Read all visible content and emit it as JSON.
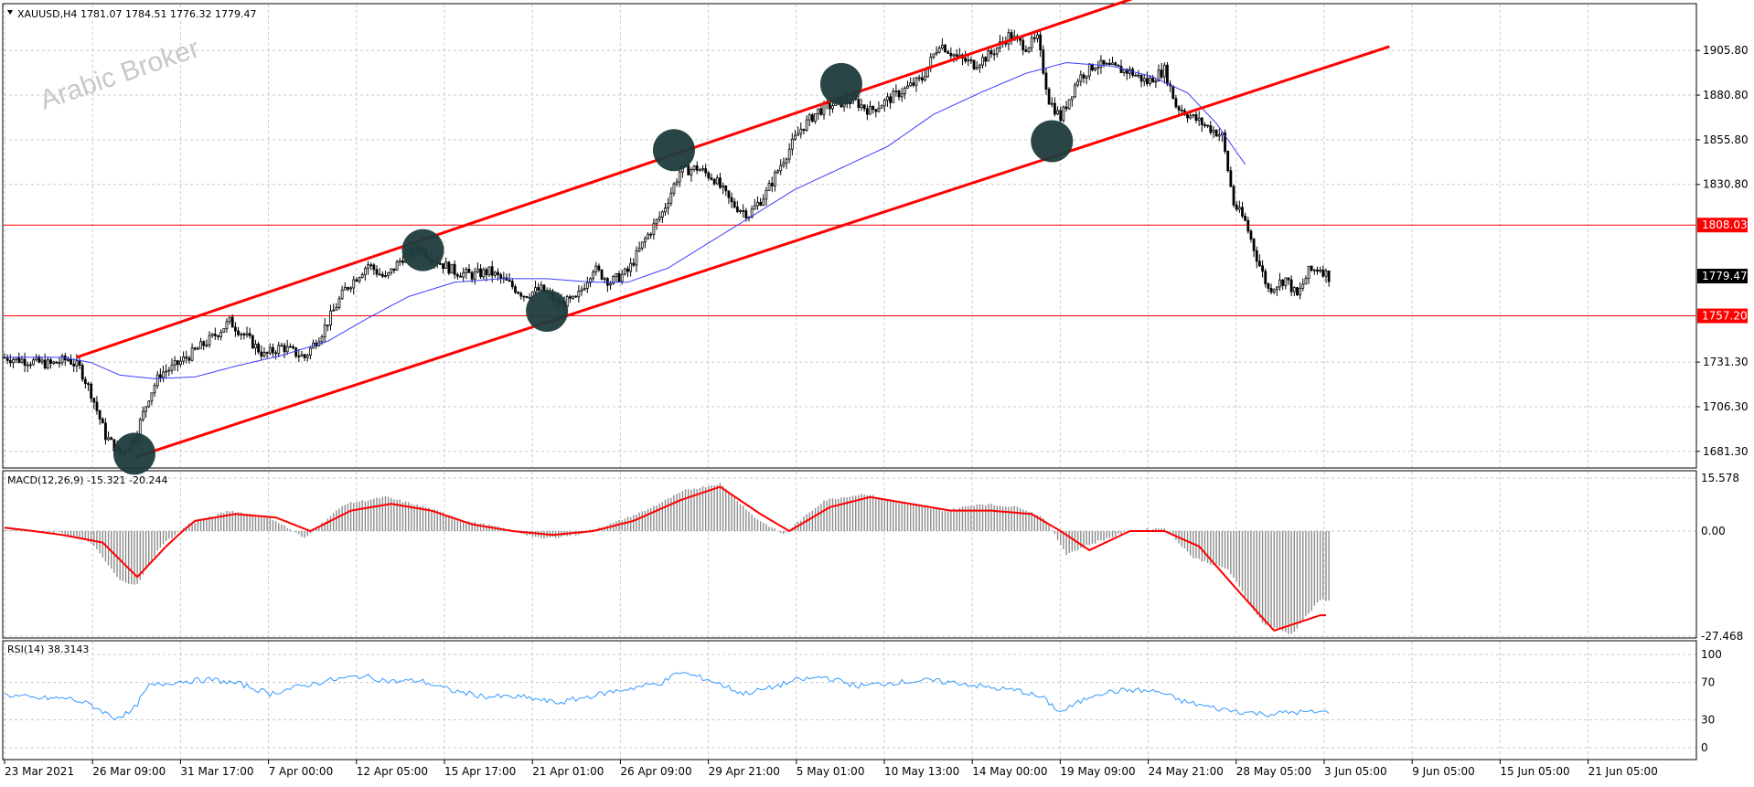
{
  "header": {
    "symbol_label": "XAUUSD,H4",
    "ohlc": "1781.07 1784.51 1776.32 1779.47"
  },
  "watermark": "Arabic Broker",
  "colors": {
    "candle": "#000000",
    "ma": "#3b3bff",
    "channel": "#ff0000",
    "level": "#ff0000",
    "macd_hist": "#8c8c8c",
    "macd_signal": "#ff0000",
    "rsi": "#3399ff",
    "marker": "#1f3b3b"
  },
  "price_axis": {
    "ticks": [
      "1905.80",
      "1880.80",
      "1855.80",
      "1830.80",
      "1731.30",
      "1706.30",
      "1681.30"
    ],
    "levels": [
      {
        "label": "1808.03",
        "value": 1808.03,
        "style": "red"
      },
      {
        "label": "1779.47",
        "value": 1779.47,
        "style": "black"
      },
      {
        "label": "1757.20",
        "value": 1757.2,
        "style": "red"
      }
    ]
  },
  "macd": {
    "label": "MACD(12,26,9) -15.321 -20.244",
    "ticks": [
      "15.578",
      "0.00",
      "-27.468"
    ]
  },
  "rsi": {
    "label": "RSI(14) 38.3143",
    "ticks": [
      "100",
      "70",
      "30",
      "0"
    ]
  },
  "time_axis": {
    "labels": [
      "23 Mar 2021",
      "26 Mar 09:00",
      "31 Mar 17:00",
      "7 Apr 00:00",
      "12 Apr 05:00",
      "15 Apr 17:00",
      "21 Apr 01:00",
      "26 Apr 09:00",
      "29 Apr 21:00",
      "5 May 01:00",
      "10 May 13:00",
      "14 May 00:00",
      "19 May 09:00",
      "24 May 21:00",
      "28 May 05:00",
      "3 Jun 05:00",
      "9 Jun 05:00",
      "15 Jun 05:00",
      "21 Jun 05:00"
    ]
  },
  "chart_data": {
    "type": "candlestick",
    "title": "XAUUSD,H4",
    "price_range": [
      1672,
      1932
    ],
    "price_path": [
      [
        0,
        1734
      ],
      [
        8,
        1732
      ],
      [
        16,
        1730
      ],
      [
        22,
        1733
      ],
      [
        26,
        1728
      ],
      [
        30,
        1714
      ],
      [
        35,
        1690
      ],
      [
        40,
        1680
      ],
      [
        45,
        1688
      ],
      [
        50,
        1712
      ],
      [
        54,
        1725
      ],
      [
        58,
        1728
      ],
      [
        64,
        1735
      ],
      [
        72,
        1745
      ],
      [
        78,
        1754
      ],
      [
        84,
        1745
      ],
      [
        90,
        1735
      ],
      [
        96,
        1740
      ],
      [
        104,
        1734
      ],
      [
        110,
        1748
      ],
      [
        118,
        1772
      ],
      [
        126,
        1786
      ],
      [
        132,
        1778
      ],
      [
        138,
        1790
      ],
      [
        144,
        1795
      ],
      [
        150,
        1788
      ],
      [
        156,
        1782
      ],
      [
        162,
        1780
      ],
      [
        168,
        1782
      ],
      [
        174,
        1776
      ],
      [
        180,
        1769
      ],
      [
        186,
        1772
      ],
      [
        192,
        1764
      ],
      [
        198,
        1766
      ],
      [
        204,
        1784
      ],
      [
        210,
        1776
      ],
      [
        216,
        1782
      ],
      [
        222,
        1800
      ],
      [
        228,
        1815
      ],
      [
        234,
        1838
      ],
      [
        240,
        1840
      ],
      [
        246,
        1834
      ],
      [
        252,
        1820
      ],
      [
        258,
        1814
      ],
      [
        264,
        1826
      ],
      [
        270,
        1845
      ],
      [
        276,
        1862
      ],
      [
        282,
        1872
      ],
      [
        288,
        1876
      ],
      [
        294,
        1878
      ],
      [
        300,
        1872
      ],
      [
        306,
        1878
      ],
      [
        312,
        1884
      ],
      [
        318,
        1890
      ],
      [
        324,
        1910
      ],
      [
        330,
        1902
      ],
      [
        336,
        1898
      ],
      [
        342,
        1904
      ],
      [
        348,
        1914
      ],
      [
        354,
        1908
      ],
      [
        358,
        1912
      ],
      [
        362,
        1878
      ],
      [
        366,
        1868
      ],
      [
        372,
        1890
      ],
      [
        378,
        1898
      ],
      [
        384,
        1896
      ],
      [
        390,
        1894
      ],
      [
        396,
        1888
      ],
      [
        402,
        1895
      ],
      [
        406,
        1875
      ],
      [
        412,
        1868
      ],
      [
        418,
        1862
      ],
      [
        422,
        1858
      ],
      [
        426,
        1820
      ],
      [
        430,
        1810
      ],
      [
        434,
        1790
      ],
      [
        438,
        1772
      ],
      [
        444,
        1778
      ],
      [
        448,
        1768
      ],
      [
        452,
        1782
      ],
      [
        456,
        1784
      ],
      [
        459,
        1779
      ]
    ],
    "ma_path": [
      [
        0,
        1734
      ],
      [
        20,
        1734
      ],
      [
        30,
        1731
      ],
      [
        40,
        1724
      ],
      [
        52,
        1722
      ],
      [
        66,
        1723
      ],
      [
        80,
        1729
      ],
      [
        96,
        1735
      ],
      [
        112,
        1743
      ],
      [
        126,
        1756
      ],
      [
        140,
        1768
      ],
      [
        156,
        1776
      ],
      [
        172,
        1778
      ],
      [
        188,
        1778
      ],
      [
        204,
        1776
      ],
      [
        216,
        1776
      ],
      [
        230,
        1784
      ],
      [
        246,
        1800
      ],
      [
        260,
        1814
      ],
      [
        274,
        1828
      ],
      [
        290,
        1840
      ],
      [
        306,
        1852
      ],
      [
        322,
        1870
      ],
      [
        338,
        1882
      ],
      [
        354,
        1893
      ],
      [
        368,
        1899
      ],
      [
        384,
        1897
      ],
      [
        398,
        1891
      ],
      [
        410,
        1882
      ],
      [
        420,
        1865
      ],
      [
        430,
        1842
      ]
    ],
    "channel": [
      {
        "name": "upper",
        "from": [
          25,
          1734
        ],
        "to": [
          395,
          1937
        ]
      },
      {
        "name": "lower",
        "from": [
          45,
          1678
        ],
        "to": [
          480,
          1908
        ]
      }
    ],
    "touch_points": [
      [
        45,
        1680
      ],
      [
        145,
        1794
      ],
      [
        188,
        1760
      ],
      [
        232,
        1850
      ],
      [
        290,
        1887
      ],
      [
        363,
        1855
      ]
    ],
    "macd_range": [
      -27.468,
      15.578
    ],
    "macd_hist": [
      [
        0,
        0.5
      ],
      [
        20,
        -0.5
      ],
      [
        30,
        -3
      ],
      [
        40,
        -13
      ],
      [
        46,
        -14
      ],
      [
        54,
        -4
      ],
      [
        64,
        2
      ],
      [
        78,
        6
      ],
      [
        92,
        4
      ],
      [
        104,
        -2
      ],
      [
        118,
        8
      ],
      [
        132,
        10
      ],
      [
        146,
        7
      ],
      [
        160,
        3
      ],
      [
        172,
        1
      ],
      [
        186,
        -2
      ],
      [
        198,
        -1
      ],
      [
        210,
        2
      ],
      [
        222,
        6
      ],
      [
        236,
        12
      ],
      [
        248,
        14
      ],
      [
        260,
        4
      ],
      [
        270,
        -1
      ],
      [
        284,
        9
      ],
      [
        298,
        11
      ],
      [
        312,
        8
      ],
      [
        326,
        6
      ],
      [
        338,
        8
      ],
      [
        352,
        7
      ],
      [
        360,
        4
      ],
      [
        368,
        -6
      ],
      [
        378,
        -3
      ],
      [
        390,
        0
      ],
      [
        402,
        1
      ],
      [
        412,
        -7
      ],
      [
        424,
        -10
      ],
      [
        436,
        -24
      ],
      [
        446,
        -27
      ],
      [
        456,
        -18
      ]
    ],
    "macd_signal": [
      [
        0,
        1
      ],
      [
        20,
        -1
      ],
      [
        34,
        -3
      ],
      [
        46,
        -12
      ],
      [
        56,
        -4
      ],
      [
        66,
        3
      ],
      [
        80,
        5
      ],
      [
        94,
        4
      ],
      [
        106,
        0
      ],
      [
        120,
        6
      ],
      [
        134,
        8
      ],
      [
        148,
        6
      ],
      [
        162,
        2
      ],
      [
        176,
        0
      ],
      [
        190,
        -1
      ],
      [
        204,
        0
      ],
      [
        218,
        3
      ],
      [
        234,
        9
      ],
      [
        248,
        13
      ],
      [
        262,
        5
      ],
      [
        272,
        0
      ],
      [
        286,
        7
      ],
      [
        300,
        10
      ],
      [
        314,
        8
      ],
      [
        328,
        6
      ],
      [
        342,
        6
      ],
      [
        356,
        5
      ],
      [
        366,
        0
      ],
      [
        376,
        -5
      ],
      [
        390,
        0
      ],
      [
        402,
        0
      ],
      [
        414,
        -4
      ],
      [
        428,
        -16
      ],
      [
        440,
        -26
      ],
      [
        456,
        -22
      ]
    ],
    "rsi_path": [
      [
        0,
        57
      ],
      [
        10,
        53
      ],
      [
        22,
        53
      ],
      [
        30,
        46
      ],
      [
        38,
        32
      ],
      [
        44,
        38
      ],
      [
        50,
        66
      ],
      [
        60,
        71
      ],
      [
        72,
        73
      ],
      [
        82,
        68
      ],
      [
        92,
        58
      ],
      [
        100,
        64
      ],
      [
        112,
        72
      ],
      [
        124,
        77
      ],
      [
        134,
        71
      ],
      [
        144,
        72
      ],
      [
        154,
        62
      ],
      [
        166,
        55
      ],
      [
        180,
        54
      ],
      [
        192,
        48
      ],
      [
        204,
        56
      ],
      [
        214,
        62
      ],
      [
        228,
        70
      ],
      [
        234,
        81
      ],
      [
        244,
        73
      ],
      [
        256,
        58
      ],
      [
        264,
        63
      ],
      [
        274,
        72
      ],
      [
        284,
        76
      ],
      [
        296,
        66
      ],
      [
        308,
        70
      ],
      [
        320,
        72
      ],
      [
        332,
        69
      ],
      [
        342,
        64
      ],
      [
        352,
        61
      ],
      [
        360,
        53
      ],
      [
        366,
        38
      ],
      [
        378,
        58
      ],
      [
        390,
        62
      ],
      [
        400,
        60
      ],
      [
        408,
        50
      ],
      [
        420,
        42
      ],
      [
        430,
        38
      ],
      [
        438,
        36
      ],
      [
        446,
        38
      ],
      [
        456,
        38
      ]
    ]
  }
}
